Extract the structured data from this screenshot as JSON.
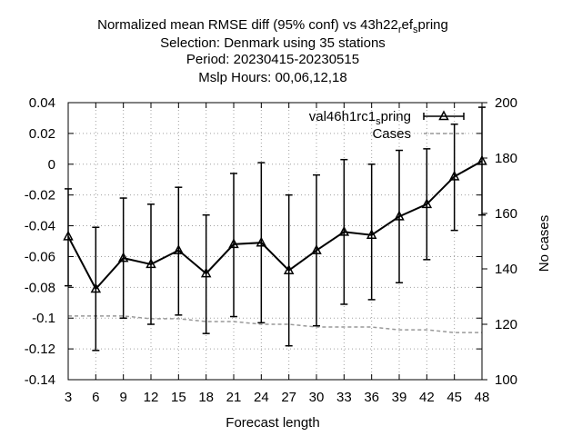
{
  "chart_data": {
    "type": "line",
    "title_lines": [
      "Normalized mean RMSE diff (95% conf) vs 43h22",
      "Selection: Denmark using    35 stations",
      "Period: 20230415-20230515",
      "Mslp   Hours:  00,06,12,18"
    ],
    "title_suffix": [
      {
        "text": "r",
        "sub": true
      },
      {
        "text": "ef",
        "sub": false
      },
      {
        "text": "s",
        "sub": true
      },
      {
        "text": "pring",
        "sub": false
      }
    ],
    "xlabel": "Forecast length",
    "ylabel": "",
    "y2label": "No cases",
    "x": [
      3,
      6,
      9,
      12,
      15,
      18,
      21,
      24,
      27,
      30,
      33,
      36,
      39,
      42,
      45,
      48
    ],
    "xticks": [
      "3",
      "6",
      "9",
      "12",
      "15",
      "18",
      "21",
      "24",
      "27",
      "30",
      "33",
      "36",
      "39",
      "42",
      "45",
      "48"
    ],
    "ylim": [
      -0.14,
      0.04
    ],
    "yticks": [
      "0.04",
      "0.02",
      "0",
      "-0.02",
      "-0.04",
      "-0.06",
      "-0.08",
      "-0.1",
      "-0.12",
      "-0.14"
    ],
    "y2lim": [
      100,
      200
    ],
    "y2ticks": [
      "200",
      "180",
      "160",
      "140",
      "120",
      "100"
    ],
    "series": [
      {
        "name": "val46h1rc1",
        "name_suffix": [
          {
            "text": "s",
            "sub": true
          },
          {
            "text": "pring",
            "sub": false
          }
        ],
        "color": "#000000",
        "values": [
          -0.047,
          -0.081,
          -0.061,
          -0.065,
          -0.056,
          -0.071,
          -0.052,
          -0.051,
          -0.069,
          -0.056,
          -0.044,
          -0.046,
          -0.034,
          -0.026,
          -0.008,
          0.002
        ],
        "err_low": [
          -0.079,
          -0.121,
          -0.1,
          -0.104,
          -0.098,
          -0.11,
          -0.099,
          -0.103,
          -0.118,
          -0.105,
          -0.091,
          -0.088,
          -0.077,
          -0.062,
          -0.043,
          -0.033
        ],
        "err_high": [
          -0.016,
          -0.041,
          -0.022,
          -0.026,
          -0.015,
          -0.033,
          -0.006,
          0.001,
          -0.02,
          -0.007,
          0.003,
          0.0,
          0.009,
          0.01,
          0.026,
          0.037
        ]
      },
      {
        "name": "Cases",
        "color": "#999999",
        "axis": "right",
        "values": [
          123,
          123,
          123,
          122,
          122,
          121,
          121,
          120,
          120,
          119,
          119,
          119,
          118,
          118,
          117,
          117
        ]
      }
    ],
    "legend_position": "top-right",
    "grid": true
  }
}
